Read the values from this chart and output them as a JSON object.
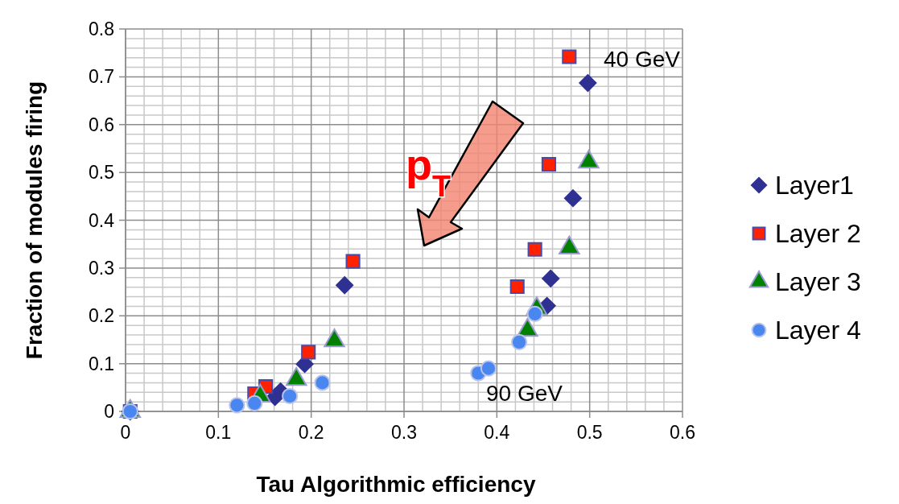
{
  "chart_data": {
    "type": "scatter",
    "xlabel": "Tau Algorithmic efficiency",
    "ylabel": "Fraction of modules firing",
    "xlim": [
      0,
      0.6
    ],
    "xticks": [
      0,
      0.1,
      0.2,
      0.3,
      0.4,
      0.5,
      0.6
    ],
    "ylim": [
      0,
      0.8
    ],
    "yticks": [
      0,
      0.1,
      0.2,
      0.3,
      0.4,
      0.5,
      0.6,
      0.7,
      0.8
    ],
    "grid": true,
    "legend": "right",
    "annotations": [
      "40 GeV",
      "90 GeV",
      "p$_{T}$"
    ],
    "series": [
      {
        "name": "Layer1",
        "color": "#2e3192",
        "marker": "diamond",
        "x": [
          0.005,
          0.161,
          0.167,
          0.193,
          0.236,
          0.454,
          0.458,
          0.482,
          0.498
        ],
        "values": [
          0,
          0.03,
          0.042,
          0.099,
          0.264,
          0.221,
          0.278,
          0.446,
          0.687
        ]
      },
      {
        "name": "Layer 2",
        "color": "#ff2200",
        "marker": "square",
        "x": [
          0.005,
          0.139,
          0.151,
          0.197,
          0.245,
          0.422,
          0.441,
          0.456,
          0.478
        ],
        "values": [
          0,
          0.037,
          0.052,
          0.124,
          0.314,
          0.261,
          0.339,
          0.517,
          0.742
        ]
      },
      {
        "name": "Layer 3",
        "color": "#008000",
        "marker": "triangle",
        "x": [
          0.005,
          0.145,
          0.184,
          0.225,
          0.433,
          0.443,
          0.478,
          0.499
        ],
        "values": [
          0,
          0.032,
          0.067,
          0.148,
          0.17,
          0.215,
          0.342,
          0.522
        ]
      },
      {
        "name": "Layer 4",
        "color": "#4a86f0",
        "marker": "circle",
        "x": [
          0.005,
          0.12,
          0.139,
          0.177,
          0.212,
          0.38,
          0.391,
          0.424,
          0.441
        ],
        "values": [
          0,
          0.013,
          0.017,
          0.032,
          0.06,
          0.08,
          0.09,
          0.145,
          0.204
        ]
      }
    ]
  }
}
